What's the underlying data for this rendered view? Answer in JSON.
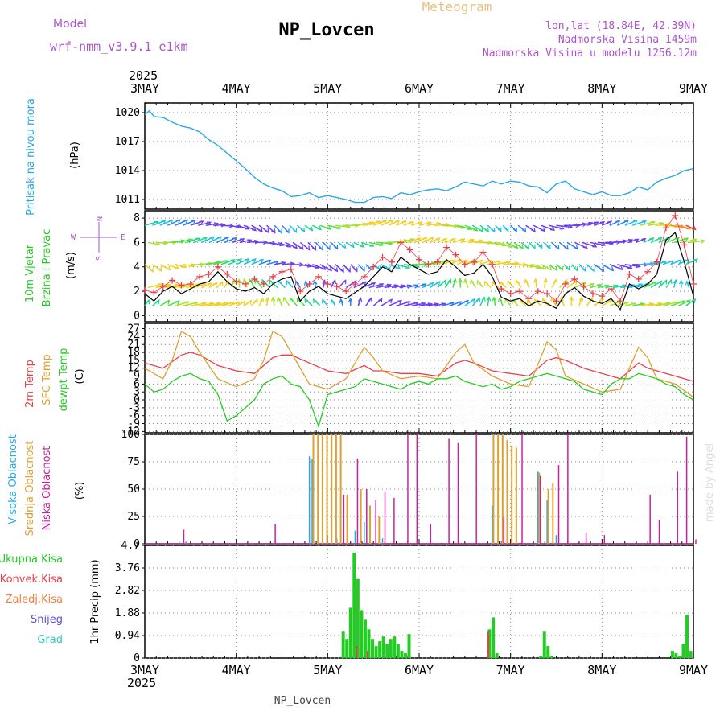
{
  "header": {
    "model_label": "Model",
    "model_value": "wrf-nmm_v3.9.1 e1km",
    "station": "NP_Lovcen",
    "product": "Meteogram",
    "coords": "lon,lat (18.84E, 42.39N)",
    "elevation": "Nadmorska Visina 1459m",
    "model_elevation": "Nadmorska Visina u modelu 1256.12m"
  },
  "footer": {
    "station": "NP_Lovcen",
    "watermark": "made by Angel"
  },
  "colors": {
    "pressure": "#29a8e6",
    "wind_label": "#22cc22",
    "temp2m": "#e8404a",
    "sfc": "#e0a030",
    "dew": "#22cc22",
    "high": "#29a8e6",
    "mid": "#e0a030",
    "low": "#cc1f9e",
    "total": "#22cc22",
    "conv": "#e8404a",
    "frz": "#f0803c",
    "snow": "#5a4ee0",
    "grad": "#2dcfc4",
    "magenta_label": "#aa55cc"
  },
  "chart_data": [
    {
      "type": "line",
      "title": "Pritisak na nivou mora",
      "ylabel": "(hPa)",
      "xlabel": "",
      "year": "2025",
      "x_ticks": [
        "3MAY",
        "4MAY",
        "5MAY",
        "6MAY",
        "7MAY",
        "8MAY",
        "9MAY"
      ],
      "ylim": [
        1010,
        1021
      ],
      "y_ticks": [
        "1011",
        "1014",
        "1017",
        "1020"
      ],
      "series": [
        {
          "name": "Pritisak na nivou mora",
          "x": [
            0.0,
            0.05,
            0.1,
            0.2,
            0.3,
            0.4,
            0.5,
            0.6,
            0.7,
            0.8,
            0.9,
            1.0,
            1.1,
            1.2,
            1.3,
            1.4,
            1.5,
            1.6,
            1.7,
            1.8,
            1.9,
            2.0,
            2.1,
            2.2,
            2.3,
            2.4,
            2.5,
            2.6,
            2.7,
            2.8,
            2.9,
            3.0,
            3.1,
            3.2,
            3.3,
            3.4,
            3.5,
            3.6,
            3.7,
            3.8,
            3.9,
            4.0,
            4.1,
            4.2,
            4.3,
            4.4,
            4.5,
            4.6,
            4.7,
            4.8,
            4.9,
            5.0,
            5.1,
            5.2,
            5.3,
            5.4,
            5.5,
            5.6,
            5.7,
            5.8,
            5.9,
            6.0
          ],
          "values": [
            1019.8,
            1020.2,
            1019.6,
            1019.5,
            1019.0,
            1018.6,
            1018.4,
            1018.0,
            1017.2,
            1016.6,
            1015.8,
            1015.0,
            1014.2,
            1013.3,
            1012.6,
            1012.2,
            1011.9,
            1011.3,
            1011.4,
            1011.7,
            1011.2,
            1011.4,
            1011.2,
            1011.0,
            1010.7,
            1010.7,
            1011.2,
            1011.3,
            1011.1,
            1011.7,
            1011.5,
            1011.8,
            1012.0,
            1012.1,
            1011.9,
            1012.3,
            1012.8,
            1012.6,
            1012.4,
            1012.9,
            1012.6,
            1012.9,
            1012.8,
            1012.4,
            1012.3,
            1011.7,
            1012.6,
            1012.9,
            1012.1,
            1011.8,
            1011.5,
            1011.8,
            1011.4,
            1011.4,
            1011.7,
            1012.3,
            1012.0,
            1012.8,
            1013.2,
            1013.5,
            1014.0,
            1014.2
          ]
        }
      ]
    },
    {
      "type": "line",
      "title": "10m Vjetar",
      "subtitle": "Brzina i Pravac",
      "ylabel": "(m/s)",
      "ylim": [
        -0.5,
        8.6
      ],
      "y_ticks": [
        "0",
        "2",
        "4",
        "6",
        "8"
      ],
      "compass": {
        "north": "N",
        "west": "W",
        "east": "E",
        "south": "S"
      },
      "series": [
        {
          "name": "Brzina",
          "x": [
            0.0,
            0.1,
            0.2,
            0.3,
            0.4,
            0.5,
            0.6,
            0.7,
            0.8,
            0.9,
            1.0,
            1.1,
            1.2,
            1.3,
            1.4,
            1.5,
            1.6,
            1.7,
            1.8,
            1.9,
            2.0,
            2.1,
            2.2,
            2.3,
            2.4,
            2.5,
            2.6,
            2.7,
            2.8,
            2.9,
            3.0,
            3.1,
            3.2,
            3.3,
            3.4,
            3.5,
            3.6,
            3.7,
            3.8,
            3.9,
            4.0,
            4.1,
            4.2,
            4.3,
            4.4,
            4.5,
            4.6,
            4.7,
            4.8,
            4.9,
            5.0,
            5.1,
            5.2,
            5.3,
            5.4,
            5.5,
            5.6,
            5.7,
            5.8,
            5.9,
            6.0
          ],
          "values": [
            1.8,
            1.2,
            2.0,
            2.4,
            1.8,
            2.2,
            2.6,
            2.8,
            3.6,
            2.8,
            2.2,
            2.0,
            2.3,
            1.8,
            2.6,
            3.0,
            3.2,
            1.2,
            2.0,
            2.4,
            1.8,
            1.6,
            1.4,
            1.9,
            2.4,
            3.2,
            4.0,
            3.6,
            4.8,
            4.2,
            3.8,
            3.4,
            3.6,
            4.6,
            4.0,
            3.3,
            3.5,
            4.2,
            3.2,
            1.5,
            1.2,
            1.4,
            0.8,
            1.2,
            1.0,
            0.6,
            1.8,
            2.3,
            1.6,
            1.2,
            1.0,
            1.4,
            0.5,
            2.6,
            2.2,
            2.6,
            3.4,
            6.2,
            6.8,
            4.4,
            1.6
          ],
          "gust": [
            2.1,
            1.9,
            2.4,
            2.9,
            2.5,
            2.6,
            3.2,
            3.4,
            4.0,
            3.4,
            2.8,
            2.6,
            3.0,
            2.6,
            3.2,
            3.6,
            3.8,
            2.0,
            2.6,
            3.2,
            2.6,
            2.4,
            2.0,
            2.6,
            3.2,
            4.0,
            4.8,
            4.4,
            6.0,
            5.4,
            4.6,
            4.2,
            4.4,
            5.6,
            5.0,
            4.2,
            4.4,
            5.2,
            4.2,
            2.2,
            1.8,
            2.0,
            1.4,
            2.0,
            1.8,
            1.2,
            2.6,
            3.0,
            2.4,
            1.8,
            1.6,
            2.2,
            1.2,
            3.4,
            3.0,
            3.6,
            4.4,
            7.2,
            8.2,
            5.8,
            2.6
          ]
        }
      ]
    },
    {
      "type": "line",
      "title": "2m Temp",
      "ylabel": "(C)",
      "ylim": [
        -12.5,
        29
      ],
      "y_ticks": [
        "-12",
        "-9",
        "-6",
        "-3",
        "0",
        "3",
        "6",
        "9",
        "12",
        "15",
        "18",
        "21",
        "24",
        "27"
      ],
      "series": [
        {
          "name": "2m Temp",
          "x": [
            0.0,
            0.2,
            0.4,
            0.5,
            0.6,
            0.8,
            1.0,
            1.2,
            1.4,
            1.5,
            1.6,
            1.8,
            2.0,
            2.2,
            2.4,
            2.5,
            2.6,
            2.8,
            3.0,
            3.2,
            3.4,
            3.5,
            3.6,
            3.8,
            4.0,
            4.2,
            4.4,
            4.5,
            4.6,
            4.8,
            5.0,
            5.2,
            5.4,
            5.5,
            5.6,
            5.8,
            6.0
          ],
          "values": [
            14,
            12,
            17,
            18,
            17,
            13,
            11,
            10,
            16,
            17,
            17,
            14,
            11,
            10,
            13,
            11,
            11,
            10,
            10,
            9,
            14,
            15,
            14,
            11,
            10,
            9,
            15,
            16,
            15,
            12,
            10,
            8,
            14,
            12,
            11,
            9,
            7
          ]
        },
        {
          "name": "SFC Temp",
          "x": [
            0.0,
            0.2,
            0.3,
            0.4,
            0.5,
            0.6,
            0.8,
            1.0,
            1.2,
            1.3,
            1.4,
            1.5,
            1.6,
            1.8,
            2.0,
            2.2,
            2.4,
            2.5,
            2.6,
            2.8,
            3.0,
            3.2,
            3.4,
            3.5,
            3.6,
            3.8,
            4.0,
            4.2,
            4.4,
            4.5,
            4.6,
            4.8,
            5.0,
            5.2,
            5.4,
            5.5,
            5.6,
            5.8,
            6.0
          ],
          "values": [
            12,
            8,
            15,
            26,
            24,
            18,
            8,
            5,
            8,
            15,
            26,
            24,
            18,
            6,
            4,
            8,
            20,
            16,
            11,
            8,
            9,
            8,
            18,
            21,
            14,
            9,
            6,
            5,
            22,
            19,
            9,
            6,
            3,
            4,
            20,
            16,
            8,
            6,
            1
          ]
        },
        {
          "name": "dewpt Temp",
          "x": [
            0.0,
            0.1,
            0.2,
            0.3,
            0.4,
            0.5,
            0.6,
            0.7,
            0.8,
            0.9,
            1.0,
            1.1,
            1.2,
            1.3,
            1.4,
            1.5,
            1.6,
            1.7,
            1.8,
            1.9,
            2.0,
            2.1,
            2.2,
            2.3,
            2.4,
            2.5,
            2.6,
            2.7,
            2.8,
            2.9,
            3.0,
            3.1,
            3.2,
            3.3,
            3.4,
            3.5,
            3.6,
            3.7,
            3.8,
            3.9,
            4.0,
            4.1,
            4.2,
            4.3,
            4.4,
            4.5,
            4.6,
            4.7,
            4.8,
            4.9,
            5.0,
            5.1,
            5.2,
            5.3,
            5.4,
            5.5,
            5.6,
            5.7,
            5.8,
            5.9,
            6.0
          ],
          "values": [
            6,
            3,
            4,
            7,
            9,
            10,
            8,
            7,
            2,
            -8,
            -6,
            -3,
            0,
            6,
            8,
            9,
            6,
            5,
            0,
            -10,
            2,
            3,
            4,
            5,
            8,
            7,
            6,
            5,
            4,
            6,
            7,
            6,
            8,
            8,
            9,
            7,
            6,
            5,
            6,
            4,
            5,
            7,
            8,
            9,
            10,
            9,
            8,
            7,
            4,
            3,
            2,
            6,
            8,
            8,
            10,
            9,
            8,
            6,
            5,
            2,
            0
          ]
        }
      ]
    },
    {
      "type": "bar",
      "title": "Oblacnost",
      "ylabel": "(%)",
      "ylim": [
        0,
        100
      ],
      "y_ticks": [
        "0",
        "25",
        "50",
        "75",
        "100"
      ],
      "series": [
        {
          "name": "Visoka Oblacnost",
          "x": [
            0.45,
            1.8,
            1.83,
            2.0,
            2.1,
            2.3,
            2.4,
            2.6,
            3.8,
            3.9,
            4.3,
            4.4,
            4.5
          ],
          "values": [
            2,
            80,
            78,
            8,
            5,
            12,
            20,
            5,
            35,
            3,
            66,
            40,
            8
          ]
        },
        {
          "name": "Srednja Oblacnost",
          "x": [
            1.83,
            1.88,
            1.93,
            1.98,
            2.03,
            2.08,
            2.13,
            2.2,
            2.35,
            2.45,
            2.55,
            3.8,
            3.85,
            3.9,
            3.95,
            4.0,
            4.05,
            4.3,
            4.4,
            4.45
          ],
          "values": [
            100,
            100,
            100,
            100,
            100,
            100,
            100,
            45,
            50,
            35,
            25,
            100,
            100,
            100,
            95,
            90,
            88,
            65,
            50,
            55
          ]
        },
        {
          "name": "Niska Oblacnost",
          "x": [
            0.4,
            1.4,
            2.15,
            2.3,
            2.4,
            2.5,
            2.6,
            2.7,
            2.85,
            2.95,
            3.1,
            3.3,
            3.4,
            3.6,
            3.9,
            4.1,
            4.3,
            4.5,
            4.6,
            4.8,
            5.0,
            5.5,
            5.6,
            5.8,
            5.9,
            6.0
          ],
          "values": [
            13,
            18,
            45,
            78,
            50,
            40,
            48,
            42,
            100,
            100,
            18,
            96,
            92,
            100,
            24,
            100,
            62,
            72,
            100,
            10,
            8,
            45,
            22,
            66,
            98,
            4
          ]
        }
      ]
    },
    {
      "type": "bar",
      "title": "1hr Precip",
      "ylabel": "1hr Precip (mm)",
      "ylim": [
        0,
        4.7
      ],
      "y_ticks": [
        "0",
        "0.94",
        "1.88",
        "2.82",
        "3.76",
        "4.7"
      ],
      "x_ticks": [
        "3MAY",
        "4MAY",
        "5MAY",
        "6MAY",
        "7MAY",
        "8MAY",
        "9MAY"
      ],
      "year": "2025",
      "series": [
        {
          "name": "Ukupna Kisa",
          "x": [
            2.17,
            2.21,
            2.25,
            2.29,
            2.33,
            2.37,
            2.41,
            2.45,
            2.49,
            2.53,
            2.57,
            2.61,
            2.65,
            2.69,
            2.73,
            2.77,
            2.81,
            2.85,
            2.89,
            3.77,
            3.81,
            3.85,
            4.33,
            4.37,
            4.41,
            4.45,
            5.77,
            5.81,
            5.85,
            5.89,
            5.93,
            5.97
          ],
          "values": [
            1.1,
            0.8,
            2.1,
            4.4,
            3.3,
            2.0,
            1.6,
            1.2,
            0.8,
            0.5,
            0.7,
            0.9,
            0.6,
            0.8,
            0.9,
            0.6,
            0.3,
            0.2,
            1.0,
            1.2,
            1.7,
            0.2,
            0.1,
            1.1,
            0.5,
            0.1,
            0.3,
            0.2,
            0.1,
            0.6,
            1.8,
            0.3
          ]
        },
        {
          "name": "Konvek.Kisa",
          "x": [
            2.33,
            2.45,
            3.77
          ],
          "values": [
            0.5,
            0.3,
            1.1
          ]
        }
      ]
    }
  ],
  "panel_labels": {
    "p1": [
      "Pritisak na nivou mora"
    ],
    "p2": [
      "10m Vjetar",
      "Brzina i Pravac"
    ],
    "p3": [
      "2m Temp",
      "SFC Temp",
      "dewpt Temp"
    ],
    "p4": [
      "Visoka Oblacnost",
      "Srednja Oblacnost",
      "Niska Oblacnost"
    ],
    "p5": [
      "Ukupna Kisa",
      "Konvek.Kisa",
      "Zaledj.Kisa",
      "Snijeg",
      "Grad"
    ]
  }
}
